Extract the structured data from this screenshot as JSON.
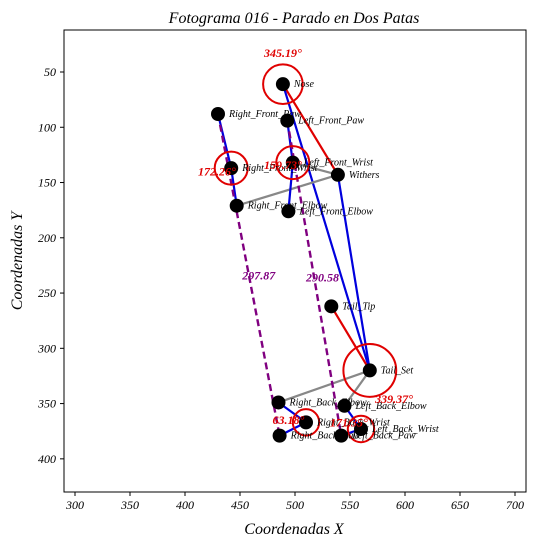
{
  "chart_data": {
    "type": "scatter",
    "title": "Fotograma 016 - Parado en Dos Patas",
    "xlabel": "Coordenadas X",
    "ylabel": "Coordenadas Y",
    "xlim": [
      290,
      710
    ],
    "ylim": [
      430,
      12
    ],
    "y_inverted": true,
    "x_ticks": [
      300,
      350,
      400,
      450,
      500,
      550,
      600,
      650,
      700
    ],
    "y_ticks": [
      50,
      100,
      150,
      200,
      250,
      300,
      350,
      400
    ],
    "grid": false,
    "legend": "none",
    "keypoints": [
      {
        "name": "Nose",
        "x": 489,
        "y": 61
      },
      {
        "name": "Left_Front_Paw",
        "x": 493,
        "y": 94
      },
      {
        "name": "Right_Front_Paw",
        "x": 430,
        "y": 88
      },
      {
        "name": "Left_Front_Wrist",
        "x": 498,
        "y": 132
      },
      {
        "name": "Right_Front_Wrist",
        "x": 442,
        "y": 137
      },
      {
        "name": "Withers",
        "x": 539,
        "y": 143
      },
      {
        "name": "Right_Front_Elbow",
        "x": 447,
        "y": 171
      },
      {
        "name": "Left_Front_Elbow",
        "x": 494,
        "y": 176
      },
      {
        "name": "Tail_Tip",
        "x": 533,
        "y": 262
      },
      {
        "name": "Tail_Set",
        "x": 568,
        "y": 320
      },
      {
        "name": "Right_Back_Elbow",
        "x": 485,
        "y": 349
      },
      {
        "name": "Left_Back_Elbow",
        "x": 545,
        "y": 352
      },
      {
        "name": "Right_Back_Wrist",
        "x": 510,
        "y": 367
      },
      {
        "name": "Left_Back_Wrist",
        "x": 560,
        "y": 373
      },
      {
        "name": "Right_Back_Paw",
        "x": 486,
        "y": 379
      },
      {
        "name": "Left_Back_Paw",
        "x": 542,
        "y": 379
      }
    ],
    "segments": [
      {
        "from": "Nose",
        "to": "Withers",
        "color": "#e00000",
        "style": "solid"
      },
      {
        "from": "Withers",
        "to": "Tail_Set",
        "color": "#0000dd",
        "style": "solid"
      },
      {
        "from": "Nose",
        "to": "Tail_Set",
        "color": "#0000dd",
        "style": "solid"
      },
      {
        "from": "Tail_Set",
        "to": "Tail_Tip",
        "color": "#e00000",
        "style": "solid"
      },
      {
        "from": "Withers",
        "to": "Right_Front_Elbow",
        "color": "#888888",
        "style": "solid"
      },
      {
        "from": "Withers",
        "to": "Left_Front_Wrist",
        "color": "#888888",
        "style": "solid"
      },
      {
        "from": "Right_Front_Elbow",
        "to": "Right_Front_Wrist",
        "color": "#0000dd",
        "style": "solid"
      },
      {
        "from": "Right_Front_Wrist",
        "to": "Right_Front_Paw",
        "color": "#0000dd",
        "style": "solid"
      },
      {
        "from": "Left_Front_Elbow",
        "to": "Left_Front_Wrist",
        "color": "#0000dd",
        "style": "solid"
      },
      {
        "from": "Left_Front_Wrist",
        "to": "Left_Front_Paw",
        "color": "#0000dd",
        "style": "solid"
      },
      {
        "from": "Tail_Set",
        "to": "Right_Back_Elbow",
        "color": "#888888",
        "style": "solid"
      },
      {
        "from": "Tail_Set",
        "to": "Left_Back_Elbow",
        "color": "#888888",
        "style": "solid"
      },
      {
        "from": "Right_Back_Elbow",
        "to": "Right_Back_Wrist",
        "color": "#0000dd",
        "style": "solid"
      },
      {
        "from": "Right_Back_Wrist",
        "to": "Right_Back_Paw",
        "color": "#0000dd",
        "style": "solid"
      },
      {
        "from": "Left_Back_Elbow",
        "to": "Left_Back_Wrist",
        "color": "#0000dd",
        "style": "solid"
      },
      {
        "from": "Left_Back_Wrist",
        "to": "Left_Back_Paw",
        "color": "#0000dd",
        "style": "solid"
      },
      {
        "from": "Right_Front_Paw",
        "to": "Right_Back_Paw",
        "color": "#800080",
        "style": "dashed"
      },
      {
        "from": "Left_Front_Paw",
        "to": "Left_Back_Paw",
        "color": "#800080",
        "style": "dashed"
      }
    ],
    "angle_circles": [
      {
        "at": "Nose",
        "radius": 12,
        "color": "#e00000"
      },
      {
        "at": "Right_Front_Wrist",
        "radius": 10,
        "color": "#e00000"
      },
      {
        "at": "Left_Front_Wrist",
        "radius": 10,
        "color": "#e00000"
      },
      {
        "at": "Tail_Set",
        "radius": 16,
        "color": "#e00000"
      },
      {
        "at": "Right_Back_Wrist",
        "radius": 8,
        "color": "#e00000"
      },
      {
        "at": "Left_Back_Wrist",
        "radius": 8,
        "color": "#e00000"
      }
    ],
    "annotations": [
      {
        "text": "345.19°",
        "x": 489,
        "y": 33,
        "color": "#e00000"
      },
      {
        "text": "172.26°",
        "x": 429,
        "y": 140,
        "color": "#e00000"
      },
      {
        "text": "159.73°",
        "x": 489,
        "y": 134,
        "color": "#e00000"
      },
      {
        "text": "339.37°",
        "x": 590,
        "y": 346,
        "color": "#e00000"
      },
      {
        "text": "63.18°",
        "x": 494,
        "y": 365,
        "color": "#e00000"
      },
      {
        "text": "171.35°",
        "x": 549,
        "y": 367,
        "color": "#e00000"
      },
      {
        "text": "297.87",
        "x": 467,
        "y": 234,
        "color": "#800080"
      },
      {
        "text": "290.58",
        "x": 525,
        "y": 236,
        "color": "#800080"
      }
    ]
  }
}
